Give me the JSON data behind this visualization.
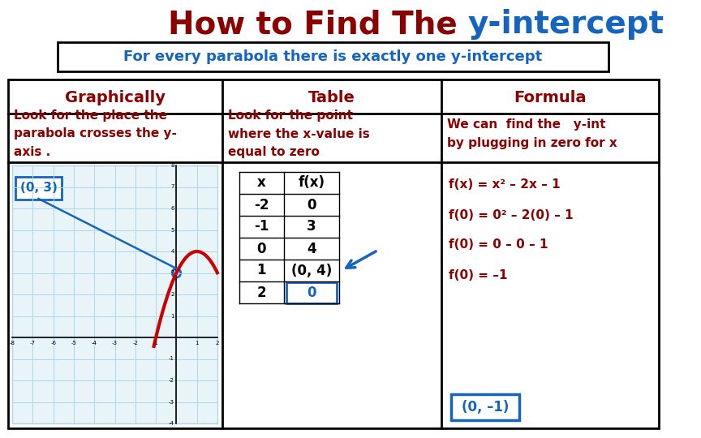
{
  "title_part1": "How to Find The ",
  "title_part2": "y-intercept",
  "subtitle": "For every parabola there is exactly one y-intercept",
  "col_headers": [
    "Graphically",
    "Table",
    "Formula"
  ],
  "graphically_text": "Look for the place the\nparabola crosses the y-\naxis .",
  "table_text": "Look for the point\nwhere the x-value is\nequal to zero",
  "formula_text": "We can  find the   y-int\nby plugging in zero for x",
  "table_x": [
    "x",
    "-2",
    "-1",
    "0",
    "1",
    "2"
  ],
  "table_fx": [
    "f(x)",
    "0",
    "3",
    "4",
    "(0, 4)",
    "0"
  ],
  "formula_lines": [
    "f(x) = x² – 2x – 1",
    "f(0) = 0² – 2(0) – 1",
    "f(0) = 0 – 0 – 1",
    "f(0) = –1"
  ],
  "graphically_point": "(0, 3)",
  "formula_point": "(0, –1)",
  "bg_color": "#ffffff",
  "title_color1": "#8B0000",
  "title_color2": "#1565C0",
  "subtitle_color": "#1565C0",
  "header_color": "#8B0000",
  "body_color": "#8B0000",
  "grid_color": "#ADD8E6",
  "grid_bg": "#E8F4F8",
  "parabola_color": "#CC0000",
  "box_color": "#1565C0",
  "arrow_color": "#1565C0"
}
